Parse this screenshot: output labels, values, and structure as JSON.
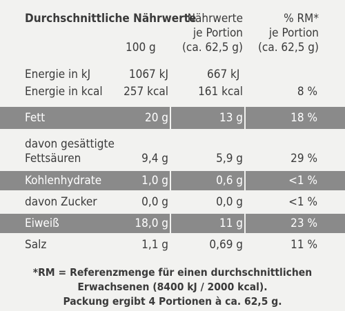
{
  "header": {
    "title": "Durchschnittliche Nährwerte",
    "col100": "100 g",
    "portion": [
      "Nährwerte",
      "je Portion",
      "(ca. 62,5 g)"
    ],
    "rm": [
      "% RM*",
      "je Portion",
      "(ca. 62,5 g)"
    ]
  },
  "rows": [
    {
      "label": [
        "Energie in kJ"
      ],
      "v100": "1067 kJ",
      "vport": "667 kJ",
      "rm": "",
      "shaded": false
    },
    {
      "label": [
        "Energie in kcal"
      ],
      "v100": "257 kcal",
      "vport": "161 kcal",
      "rm": "8 %",
      "shaded": false
    },
    {
      "label": [
        "Fett"
      ],
      "v100": "20 g",
      "vport": "13 g",
      "rm": "18 %",
      "shaded": true
    },
    {
      "label": [
        "davon gesättigte",
        "Fettsäuren"
      ],
      "v100": "9,4 g",
      "vport": "5,9 g",
      "rm": "29 %",
      "shaded": false
    },
    {
      "label": [
        "Kohlenhydrate"
      ],
      "v100": "1,0 g",
      "vport": "0,6 g",
      "rm": "<1 %",
      "shaded": true
    },
    {
      "label": [
        "davon Zucker"
      ],
      "v100": "0,0 g",
      "vport": "0,0 g",
      "rm": "<1 %",
      "shaded": false
    },
    {
      "label": [
        "Eiweiß"
      ],
      "v100": "18,0 g",
      "vport": "11 g",
      "rm": "23 %",
      "shaded": true
    },
    {
      "label": [
        "Salz"
      ],
      "v100": "1,1 g",
      "vport": "0,69 g",
      "rm": "11 %",
      "shaded": false
    }
  ],
  "footnote": [
    "*RM = Referenzmenge für einen durchschnittlichen",
    "Erwachsenen (8400 kJ / 2000 kcal).",
    "Packung ergibt 4 Portionen à ca. 62,5 g."
  ],
  "colors": {
    "band": "#8a8a8a",
    "background": "#f2f2f0",
    "text": "#3a3a3a"
  }
}
